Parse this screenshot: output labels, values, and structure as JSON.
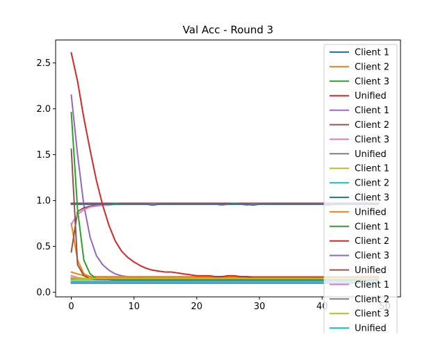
{
  "chart_data": {
    "type": "line",
    "title": "Val Acc - Round 3",
    "xlabel": "",
    "ylabel": "",
    "xlim": [
      -2.5,
      52.5
    ],
    "ylim": [
      -0.05,
      2.75
    ],
    "x_ticks": [
      0,
      10,
      20,
      30,
      40,
      50
    ],
    "y_ticks": [
      0.0,
      0.5,
      1.0,
      1.5,
      2.0,
      2.5
    ],
    "x_tick_labels": [
      "0",
      "10",
      "20",
      "30",
      "40",
      "50"
    ],
    "y_tick_labels": [
      "0.0",
      "0.5",
      "1.0",
      "1.5",
      "2.0",
      "2.5"
    ],
    "grid": false,
    "legend_position": "top-right",
    "x": [
      0,
      1,
      2,
      3,
      4,
      5,
      6,
      7,
      8,
      9,
      10,
      11,
      12,
      13,
      14,
      15,
      16,
      17,
      18,
      19,
      20,
      21,
      22,
      23,
      24,
      25,
      26,
      27,
      28,
      29,
      30,
      31,
      32,
      33,
      34,
      35,
      36,
      37,
      38,
      39,
      40,
      41,
      42,
      43,
      44,
      45,
      46,
      47,
      48,
      49
    ],
    "series": [
      {
        "name": "Client 1",
        "color": "#1f77b4",
        "values": [
          0.1,
          0.1,
          0.1,
          0.1,
          0.1,
          0.1,
          0.1,
          0.1,
          0.1,
          0.1,
          0.1,
          0.1,
          0.1,
          0.1,
          0.1,
          0.1,
          0.1,
          0.1,
          0.1,
          0.1,
          0.1,
          0.1,
          0.1,
          0.1,
          0.1,
          0.1,
          0.1,
          0.1,
          0.1,
          0.1,
          0.1,
          0.1,
          0.1,
          0.1,
          0.1,
          0.1,
          0.1,
          0.1,
          0.1,
          0.1,
          0.1,
          0.1,
          0.1,
          0.1,
          0.1,
          0.1,
          0.1,
          0.1,
          0.1,
          0.1
        ]
      },
      {
        "name": "Client 2",
        "color": "#ff7f0e",
        "values": [
          0.75,
          0.35,
          0.2,
          0.17,
          0.16,
          0.16,
          0.16,
          0.16,
          0.16,
          0.16,
          0.16,
          0.16,
          0.16,
          0.16,
          0.16,
          0.16,
          0.16,
          0.16,
          0.16,
          0.16,
          0.16,
          0.16,
          0.16,
          0.16,
          0.16,
          0.16,
          0.16,
          0.16,
          0.16,
          0.16,
          0.16,
          0.16,
          0.16,
          0.16,
          0.16,
          0.16,
          0.16,
          0.16,
          0.16,
          0.16,
          0.16,
          0.16,
          0.16,
          0.16,
          0.16,
          0.16,
          0.16,
          0.16,
          0.16,
          0.16
        ]
      },
      {
        "name": "Client 3",
        "color": "#2ca02c",
        "values": [
          0.97,
          0.97,
          0.97,
          0.97,
          0.97,
          0.97,
          0.97,
          0.97,
          0.97,
          0.97,
          0.97,
          0.97,
          0.97,
          0.97,
          0.97,
          0.97,
          0.97,
          0.97,
          0.97,
          0.97,
          0.97,
          0.97,
          0.97,
          0.97,
          0.97,
          0.97,
          0.97,
          0.97,
          0.97,
          0.97,
          0.97,
          0.97,
          0.97,
          0.97,
          0.97,
          0.97,
          0.97,
          0.97,
          0.97,
          0.97,
          0.97,
          0.97,
          0.97,
          0.97,
          0.97,
          0.97,
          0.97,
          0.97,
          0.97,
          0.97
        ]
      },
      {
        "name": "Unified",
        "color": "#d62728",
        "values": [
          0.97,
          0.97,
          0.97,
          0.97,
          0.97,
          0.97,
          0.97,
          0.96,
          0.97,
          0.97,
          0.97,
          0.97,
          0.97,
          0.97,
          0.97,
          0.97,
          0.97,
          0.97,
          0.97,
          0.97,
          0.97,
          0.97,
          0.97,
          0.97,
          0.97,
          0.97,
          0.96,
          0.97,
          0.97,
          0.97,
          0.97,
          0.97,
          0.97,
          0.97,
          0.97,
          0.97,
          0.97,
          0.97,
          0.97,
          0.97,
          0.97,
          0.97,
          0.97,
          0.97,
          0.97,
          0.97,
          0.97,
          0.97,
          0.97,
          0.97
        ]
      },
      {
        "name": "Client 1",
        "color": "#9467bd",
        "values": [
          2.15,
          1.5,
          0.95,
          0.6,
          0.4,
          0.3,
          0.24,
          0.2,
          0.18,
          0.17,
          0.16,
          0.16,
          0.15,
          0.15,
          0.15,
          0.15,
          0.15,
          0.15,
          0.15,
          0.15,
          0.15,
          0.15,
          0.15,
          0.15,
          0.15,
          0.15,
          0.15,
          0.15,
          0.15,
          0.15,
          0.15,
          0.15,
          0.15,
          0.15,
          0.15,
          0.15,
          0.15,
          0.15,
          0.15,
          0.15,
          0.15,
          0.15,
          0.15,
          0.15,
          0.15,
          0.15,
          0.15,
          0.15,
          0.15,
          0.15
        ]
      },
      {
        "name": "Client 2",
        "color": "#8c564b",
        "values": [
          0.44,
          0.88,
          0.92,
          0.94,
          0.95,
          0.96,
          0.96,
          0.96,
          0.96,
          0.96,
          0.96,
          0.96,
          0.96,
          0.96,
          0.96,
          0.96,
          0.96,
          0.96,
          0.96,
          0.96,
          0.96,
          0.96,
          0.96,
          0.96,
          0.96,
          0.96,
          0.96,
          0.96,
          0.96,
          0.96,
          0.96,
          0.96,
          0.96,
          0.96,
          0.96,
          0.96,
          0.96,
          0.96,
          0.96,
          0.96,
          0.96,
          0.96,
          0.96,
          0.96,
          0.96,
          0.96,
          0.96,
          0.96,
          0.96,
          0.96
        ]
      },
      {
        "name": "Client 3",
        "color": "#e377c2",
        "values": [
          0.74,
          0.85,
          0.9,
          0.93,
          0.94,
          0.95,
          0.95,
          0.96,
          0.96,
          0.96,
          0.96,
          0.96,
          0.96,
          0.96,
          0.96,
          0.96,
          0.96,
          0.96,
          0.96,
          0.96,
          0.96,
          0.96,
          0.96,
          0.96,
          0.96,
          0.96,
          0.96,
          0.96,
          0.96,
          0.96,
          0.96,
          0.96,
          0.96,
          0.96,
          0.96,
          0.96,
          0.96,
          0.96,
          0.96,
          0.96,
          0.96,
          0.96,
          0.96,
          0.96,
          0.96,
          0.96,
          0.96,
          0.96,
          0.96,
          0.96
        ]
      },
      {
        "name": "Unified",
        "color": "#7f7f7f",
        "values": [
          0.96,
          0.96,
          0.96,
          0.96,
          0.96,
          0.96,
          0.96,
          0.96,
          0.96,
          0.96,
          0.96,
          0.96,
          0.96,
          0.96,
          0.96,
          0.96,
          0.96,
          0.96,
          0.96,
          0.96,
          0.96,
          0.96,
          0.96,
          0.96,
          0.96,
          0.96,
          0.96,
          0.96,
          0.96,
          0.96,
          0.96,
          0.96,
          0.96,
          0.96,
          0.96,
          0.96,
          0.96,
          0.96,
          0.96,
          0.96,
          0.96,
          0.96,
          0.96,
          0.96,
          0.96,
          0.96,
          0.96,
          0.96,
          0.96,
          0.96
        ]
      },
      {
        "name": "Client 1",
        "color": "#bcbd22",
        "values": [
          0.14,
          0.14,
          0.14,
          0.14,
          0.14,
          0.14,
          0.14,
          0.14,
          0.14,
          0.14,
          0.14,
          0.14,
          0.14,
          0.14,
          0.14,
          0.14,
          0.14,
          0.14,
          0.14,
          0.14,
          0.14,
          0.14,
          0.14,
          0.14,
          0.14,
          0.14,
          0.14,
          0.14,
          0.14,
          0.14,
          0.14,
          0.14,
          0.14,
          0.14,
          0.14,
          0.14,
          0.14,
          0.14,
          0.14,
          0.14,
          0.14,
          0.14,
          0.14,
          0.14,
          0.14,
          0.14,
          0.14,
          0.14,
          0.14,
          0.14
        ]
      },
      {
        "name": "Client 2",
        "color": "#17becf",
        "values": [
          0.96,
          0.96,
          0.96,
          0.96,
          0.96,
          0.96,
          0.96,
          0.96,
          0.96,
          0.96,
          0.96,
          0.96,
          0.96,
          0.96,
          0.96,
          0.96,
          0.96,
          0.96,
          0.96,
          0.96,
          0.96,
          0.96,
          0.96,
          0.96,
          0.95,
          0.96,
          0.96,
          0.96,
          0.95,
          0.96,
          0.96,
          0.96,
          0.96,
          0.96,
          0.96,
          0.96,
          0.96,
          0.96,
          0.96,
          0.96,
          0.96,
          0.96,
          0.96,
          0.96,
          0.96,
          0.96,
          0.96,
          0.96,
          0.96,
          0.96
        ]
      },
      {
        "name": "Client 3",
        "color": "#1f77b4",
        "values": [
          0.96,
          0.96,
          0.96,
          0.96,
          0.96,
          0.96,
          0.96,
          0.96,
          0.96,
          0.96,
          0.96,
          0.96,
          0.96,
          0.95,
          0.96,
          0.96,
          0.96,
          0.96,
          0.96,
          0.96,
          0.96,
          0.96,
          0.96,
          0.96,
          0.96,
          0.96,
          0.96,
          0.96,
          0.96,
          0.95,
          0.96,
          0.96,
          0.96,
          0.96,
          0.96,
          0.96,
          0.96,
          0.96,
          0.96,
          0.96,
          0.96,
          0.95,
          0.96,
          0.96,
          0.96,
          0.96,
          0.96,
          0.96,
          0.96,
          0.96
        ]
      },
      {
        "name": "Unified",
        "color": "#ff7f0e",
        "values": [
          0.22,
          0.2,
          0.18,
          0.17,
          0.17,
          0.17,
          0.17,
          0.17,
          0.17,
          0.17,
          0.17,
          0.17,
          0.17,
          0.17,
          0.17,
          0.17,
          0.17,
          0.17,
          0.17,
          0.17,
          0.17,
          0.17,
          0.17,
          0.17,
          0.17,
          0.17,
          0.17,
          0.17,
          0.17,
          0.17,
          0.17,
          0.17,
          0.17,
          0.17,
          0.17,
          0.17,
          0.17,
          0.17,
          0.17,
          0.17,
          0.17,
          0.17,
          0.17,
          0.17,
          0.17,
          0.17,
          0.17,
          0.17,
          0.17,
          0.17
        ]
      },
      {
        "name": "Client 1",
        "color": "#2ca02c",
        "values": [
          1.96,
          0.9,
          0.35,
          0.2,
          0.15,
          0.14,
          0.14,
          0.14,
          0.14,
          0.14,
          0.14,
          0.14,
          0.14,
          0.14,
          0.14,
          0.14,
          0.14,
          0.14,
          0.14,
          0.14,
          0.14,
          0.14,
          0.14,
          0.14,
          0.14,
          0.14,
          0.14,
          0.14,
          0.14,
          0.14,
          0.14,
          0.14,
          0.14,
          0.14,
          0.14,
          0.14,
          0.14,
          0.14,
          0.14,
          0.14,
          0.14,
          0.14,
          0.14,
          0.14,
          0.14,
          0.14,
          0.14,
          0.14,
          0.14,
          0.14
        ]
      },
      {
        "name": "Client 2",
        "color": "#d62728",
        "values": [
          2.61,
          2.3,
          1.9,
          1.55,
          1.22,
          0.95,
          0.73,
          0.56,
          0.45,
          0.38,
          0.33,
          0.29,
          0.26,
          0.24,
          0.23,
          0.22,
          0.22,
          0.21,
          0.2,
          0.19,
          0.18,
          0.18,
          0.18,
          0.17,
          0.17,
          0.18,
          0.18,
          0.17,
          0.17,
          0.16,
          0.16,
          0.16,
          0.16,
          0.16,
          0.16,
          0.16,
          0.16,
          0.16,
          0.16,
          0.16,
          0.16,
          0.16,
          0.16,
          0.16,
          0.16,
          0.16,
          0.16,
          0.16,
          0.16,
          0.16
        ]
      },
      {
        "name": "Client 3",
        "color": "#9467bd",
        "values": [
          0.15,
          0.15,
          0.15,
          0.15,
          0.15,
          0.15,
          0.15,
          0.15,
          0.15,
          0.15,
          0.15,
          0.15,
          0.15,
          0.15,
          0.15,
          0.15,
          0.15,
          0.15,
          0.15,
          0.15,
          0.15,
          0.15,
          0.15,
          0.15,
          0.15,
          0.15,
          0.15,
          0.15,
          0.15,
          0.15,
          0.15,
          0.15,
          0.15,
          0.15,
          0.15,
          0.15,
          0.15,
          0.15,
          0.15,
          0.15,
          0.15,
          0.15,
          0.15,
          0.15,
          0.15,
          0.15,
          0.15,
          0.15,
          0.15,
          0.15
        ]
      },
      {
        "name": "Unified",
        "color": "#8c564b",
        "values": [
          1.56,
          0.3,
          0.18,
          0.15,
          0.14,
          0.14,
          0.14,
          0.13,
          0.13,
          0.13,
          0.13,
          0.13,
          0.13,
          0.13,
          0.13,
          0.13,
          0.13,
          0.13,
          0.13,
          0.13,
          0.13,
          0.13,
          0.13,
          0.13,
          0.13,
          0.13,
          0.13,
          0.13,
          0.13,
          0.13,
          0.13,
          0.13,
          0.13,
          0.13,
          0.13,
          0.13,
          0.13,
          0.13,
          0.13,
          0.13,
          0.13,
          0.13,
          0.13,
          0.13,
          0.13,
          0.13,
          0.13,
          0.13,
          0.13,
          0.13
        ]
      },
      {
        "name": "Client 1",
        "color": "#e377c2",
        "values": [
          0.18,
          0.16,
          0.15,
          0.15,
          0.15,
          0.15,
          0.15,
          0.15,
          0.15,
          0.15,
          0.15,
          0.15,
          0.15,
          0.15,
          0.15,
          0.15,
          0.15,
          0.15,
          0.15,
          0.15,
          0.15,
          0.15,
          0.15,
          0.15,
          0.15,
          0.15,
          0.15,
          0.15,
          0.15,
          0.15,
          0.15,
          0.15,
          0.15,
          0.15,
          0.15,
          0.15,
          0.15,
          0.15,
          0.15,
          0.15,
          0.15,
          0.15,
          0.15,
          0.15,
          0.15,
          0.15,
          0.15,
          0.15,
          0.15,
          0.15
        ]
      },
      {
        "name": "Client 2",
        "color": "#7f7f7f",
        "values": [
          0.12,
          0.12,
          0.12,
          0.12,
          0.12,
          0.12,
          0.12,
          0.12,
          0.12,
          0.12,
          0.12,
          0.12,
          0.12,
          0.12,
          0.12,
          0.12,
          0.12,
          0.12,
          0.12,
          0.12,
          0.12,
          0.12,
          0.12,
          0.12,
          0.12,
          0.12,
          0.12,
          0.12,
          0.12,
          0.12,
          0.12,
          0.12,
          0.12,
          0.12,
          0.12,
          0.12,
          0.12,
          0.12,
          0.12,
          0.12,
          0.12,
          0.12,
          0.12,
          0.12,
          0.12,
          0.12,
          0.12,
          0.12,
          0.12,
          0.12
        ]
      },
      {
        "name": "Client 3",
        "color": "#bcbd22",
        "values": [
          0.16,
          0.15,
          0.15,
          0.15,
          0.15,
          0.15,
          0.15,
          0.15,
          0.15,
          0.15,
          0.15,
          0.15,
          0.15,
          0.15,
          0.15,
          0.15,
          0.15,
          0.15,
          0.15,
          0.15,
          0.15,
          0.15,
          0.15,
          0.15,
          0.15,
          0.15,
          0.15,
          0.15,
          0.15,
          0.15,
          0.15,
          0.15,
          0.15,
          0.15,
          0.15,
          0.15,
          0.15,
          0.15,
          0.15,
          0.15,
          0.15,
          0.15,
          0.15,
          0.15,
          0.15,
          0.15,
          0.15,
          0.15,
          0.15,
          0.15
        ]
      },
      {
        "name": "Unified",
        "color": "#17becf",
        "values": [
          0.12,
          0.12,
          0.12,
          0.12,
          0.12,
          0.12,
          0.12,
          0.12,
          0.12,
          0.12,
          0.12,
          0.12,
          0.12,
          0.12,
          0.12,
          0.12,
          0.12,
          0.12,
          0.12,
          0.12,
          0.12,
          0.12,
          0.12,
          0.12,
          0.12,
          0.12,
          0.12,
          0.12,
          0.12,
          0.12,
          0.12,
          0.12,
          0.12,
          0.12,
          0.12,
          0.12,
          0.12,
          0.12,
          0.12,
          0.12,
          0.12,
          0.12,
          0.12,
          0.12,
          0.12,
          0.12,
          0.12,
          0.12,
          0.12,
          0.12
        ]
      }
    ]
  }
}
